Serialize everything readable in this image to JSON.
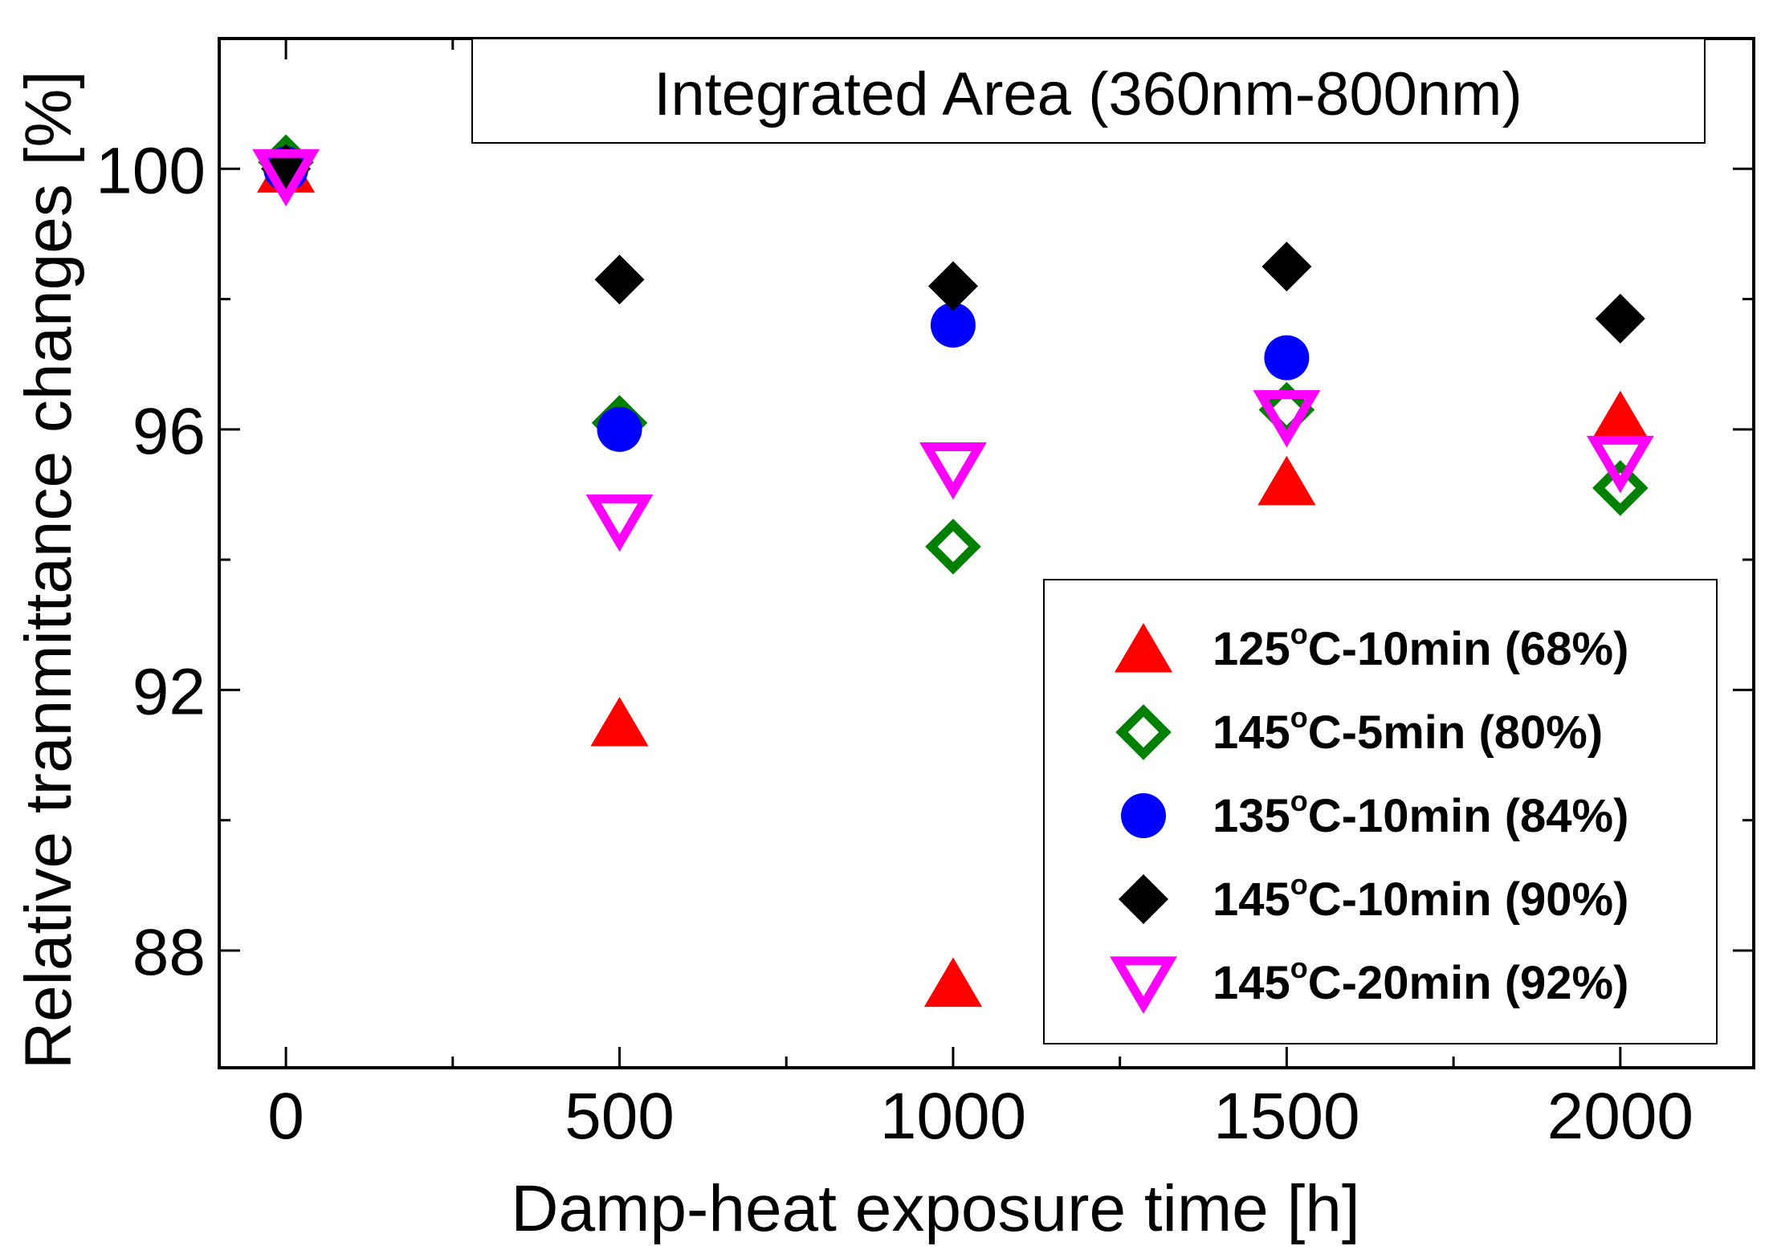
{
  "chart_data": {
    "type": "scatter",
    "title": "Integrated Area (360nm-800nm)",
    "xlabel": "Damp-heat exposure time [h]",
    "ylabel": "Relative tranmittance changes [%]",
    "xlim": [
      -100,
      2200
    ],
    "ylim": [
      86.2,
      102
    ],
    "xticks": [
      0,
      500,
      1000,
      1500,
      2000
    ],
    "yticks": [
      88,
      92,
      96,
      100
    ],
    "x": [
      0,
      500,
      1000,
      1500,
      2000
    ],
    "legend_position": "bottom-right",
    "series": [
      {
        "name": "125°C-10min (68%)",
        "label_prefix": "125",
        "label_sup": "o",
        "label_suffix": "C-10min (68%)",
        "marker": "triangle-up",
        "filled": true,
        "color": "#ff0000",
        "values": [
          100.0,
          91.5,
          87.5,
          95.2,
          96.2
        ]
      },
      {
        "name": "145°C-5min (80%)",
        "label_prefix": "145",
        "label_sup": "o",
        "label_suffix": "C-5min (80%)",
        "marker": "diamond",
        "filled": false,
        "color": "#008000",
        "values": [
          100.1,
          96.1,
          94.2,
          96.3,
          95.1
        ]
      },
      {
        "name": "135°C-10min (84%)",
        "label_prefix": "135",
        "label_sup": "o",
        "label_suffix": "C-10min (84%)",
        "marker": "circle",
        "filled": true,
        "color": "#0000ff",
        "values": [
          100.0,
          96.0,
          97.6,
          97.1,
          null
        ]
      },
      {
        "name": "145°C-10min (90%)",
        "label_prefix": "145",
        "label_sup": "o",
        "label_suffix": "C-10min (90%)",
        "marker": "diamond",
        "filled": true,
        "color": "#000000",
        "values": [
          100.0,
          98.3,
          98.2,
          98.5,
          97.7
        ]
      },
      {
        "name": "145°C-20min (92%)",
        "label_prefix": "145",
        "label_sup": "o",
        "label_suffix": "C-20min (92%)",
        "marker": "triangle-down",
        "filled": false,
        "color": "#ff00ff",
        "values": [
          99.9,
          94.6,
          95.4,
          96.2,
          95.5
        ]
      }
    ]
  }
}
